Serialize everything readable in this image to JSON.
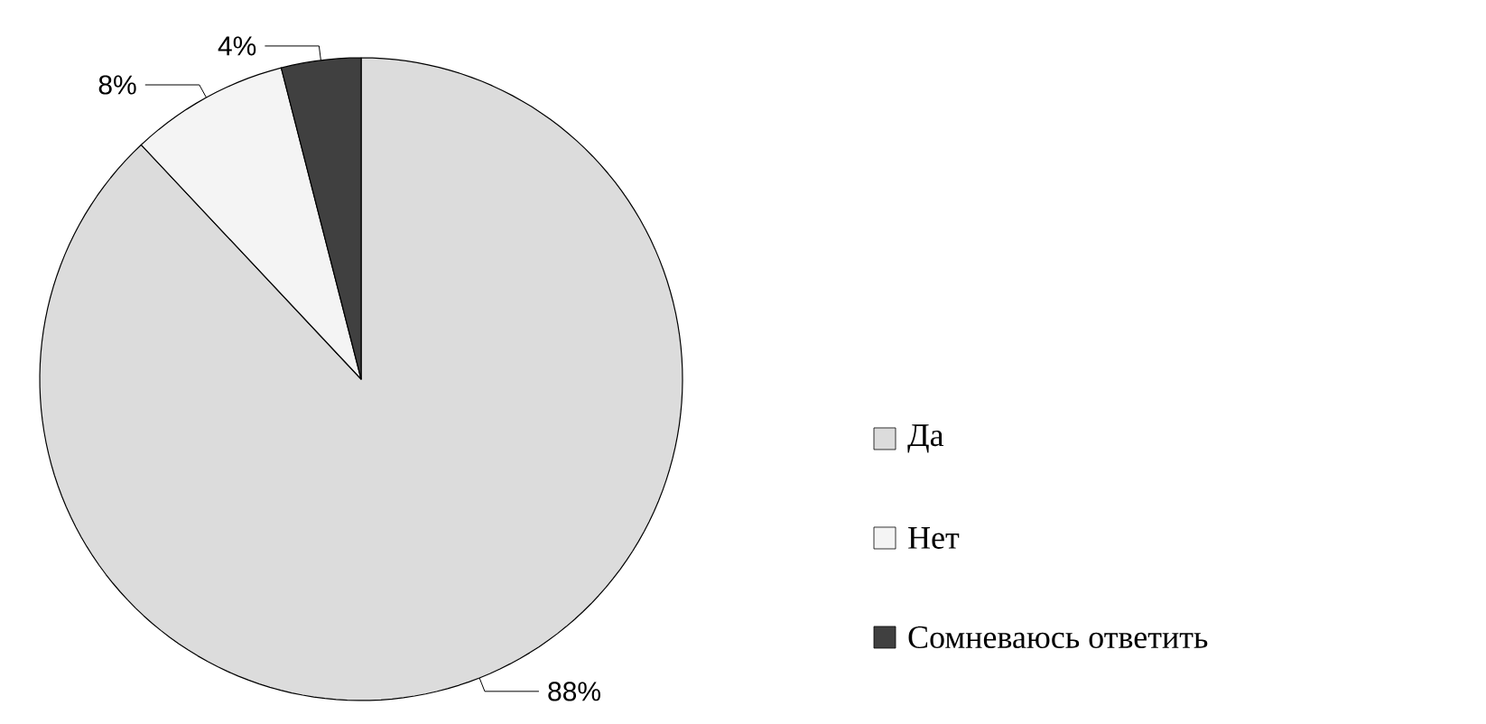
{
  "chart_data": {
    "type": "pie",
    "categories": [
      "Да",
      "Нет",
      "Сомневаюсь ответить"
    ],
    "values": [
      88,
      8,
      4
    ],
    "colors": [
      "#dcdcdc",
      "#f4f4f4",
      "#404040"
    ],
    "value_labels": [
      "88%",
      "8%",
      "4%"
    ],
    "legend": "right"
  }
}
